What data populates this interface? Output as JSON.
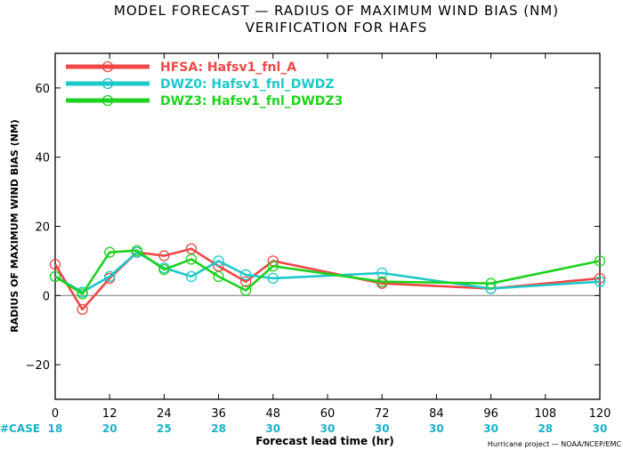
{
  "chart_data": {
    "type": "line",
    "title": "MODEL FORECAST — RADIUS OF MAXIMUM WIND BIAS (NM)",
    "subtitle": "VERIFICATION FOR HAFS",
    "xlabel": "Forecast lead time (hr)",
    "ylabel": "RADIUS OF MAXIMUM WIND BIAS (NM)",
    "xlim": [
      0,
      120
    ],
    "ylim": [
      -30,
      70
    ],
    "xticks": [
      0,
      12,
      24,
      36,
      48,
      60,
      72,
      84,
      96,
      108,
      120
    ],
    "yticks": [
      -20,
      0,
      20,
      40,
      60
    ],
    "zero_line": true,
    "legend_placement": "top-left",
    "series": [
      {
        "name": "HFSA: Hafsv1_fnl_A",
        "color": "#f04848",
        "x": [
          0,
          6,
          12,
          18,
          24,
          30,
          36,
          42,
          48,
          72,
          96,
          120
        ],
        "y": [
          9,
          -4,
          5,
          12.5,
          11.5,
          13.5,
          8.5,
          4,
          10,
          3.5,
          2,
          5
        ]
      },
      {
        "name": "DWZ0: Hafsv1_fnl_DWDZ",
        "color": "#1ec8c8",
        "x": [
          0,
          6,
          12,
          18,
          24,
          30,
          36,
          42,
          48,
          72,
          96,
          120
        ],
        "y": [
          5.5,
          1,
          5.5,
          12.5,
          8,
          5.5,
          10,
          6,
          5,
          6.5,
          2,
          4
        ]
      },
      {
        "name": "DWZ3: Hafsv1_fnl_DWDZ3",
        "color": "#1ed21e",
        "x": [
          0,
          6,
          12,
          18,
          24,
          30,
          36,
          42,
          48,
          72,
          96,
          120
        ],
        "y": [
          5.5,
          0.5,
          12.5,
          13,
          7.5,
          10.5,
          5.5,
          1.5,
          8.5,
          4,
          3.5,
          10
        ]
      }
    ],
    "case_label": "#CASE",
    "case_counts": [
      {
        "x": 0,
        "n": "18"
      },
      {
        "x": 12,
        "n": "20"
      },
      {
        "x": 24,
        "n": "25"
      },
      {
        "x": 36,
        "n": "28"
      },
      {
        "x": 48,
        "n": "30"
      },
      {
        "x": 60,
        "n": "30"
      },
      {
        "x": 72,
        "n": "30"
      },
      {
        "x": 84,
        "n": "30"
      },
      {
        "x": 96,
        "n": "30"
      },
      {
        "x": 108,
        "n": "28"
      },
      {
        "x": 120,
        "n": "30"
      }
    ],
    "credit": "Hurricane project — NOAA/NCEP/EMC"
  }
}
